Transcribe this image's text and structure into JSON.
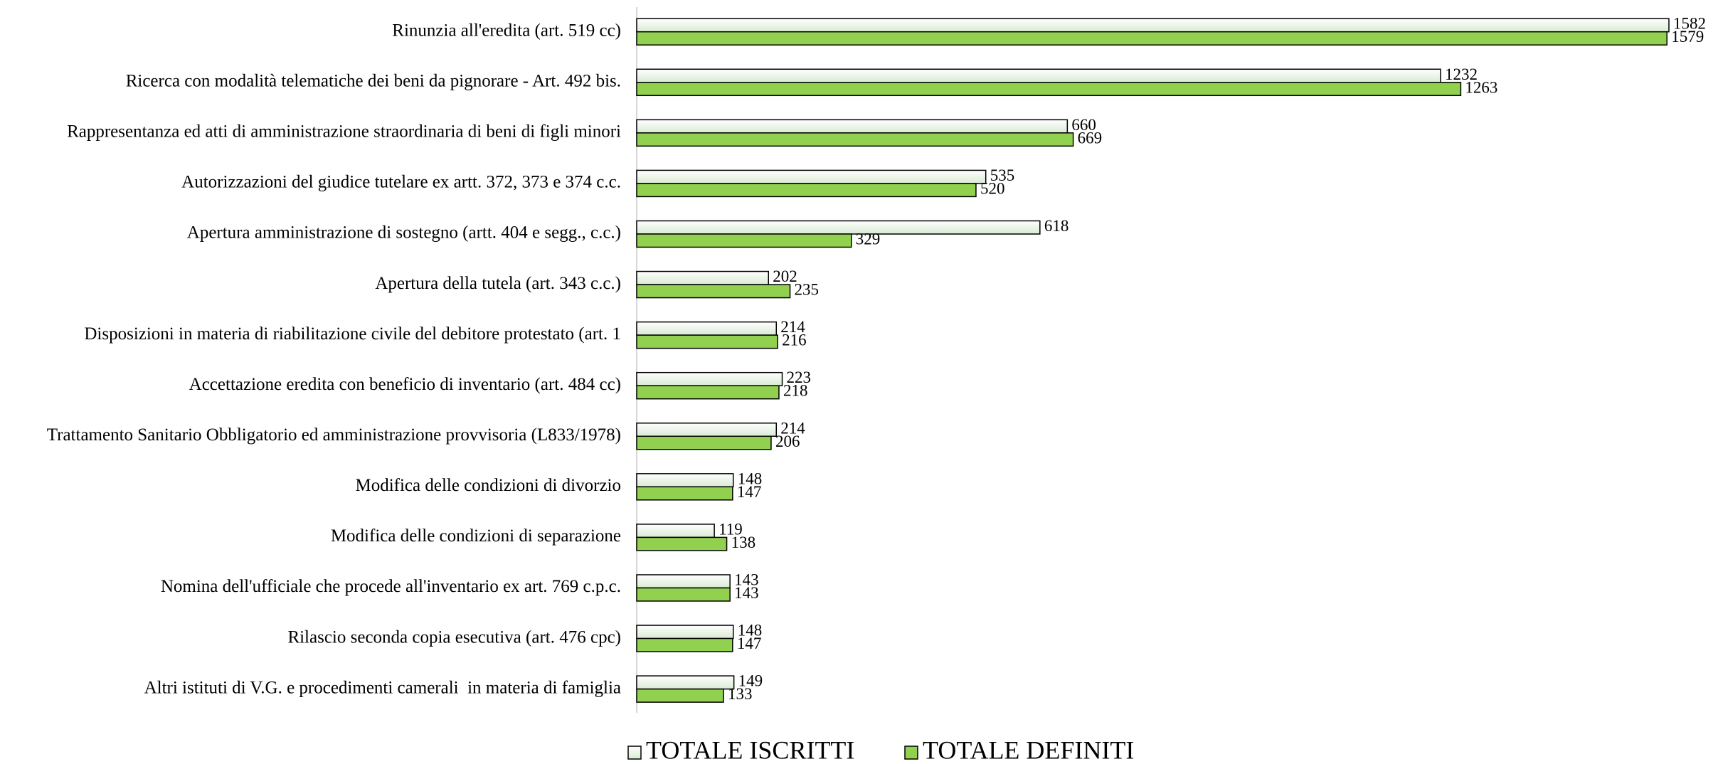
{
  "chart_data": {
    "type": "bar",
    "orientation": "horizontal",
    "categories": [
      "Rinunzia all'eredita (art. 519 cc)",
      "Ricerca con modalità telematiche dei beni da pignorare - Art. 492 bis.",
      "Rappresentanza ed atti di amministrazione straordinaria di beni di figli minori",
      "Autorizzazioni del giudice tutelare ex artt. 372, 373 e 374 c.c.",
      "Apertura amministrazione di sostegno (artt. 404 e segg., c.c.)",
      "Apertura della tutela (art. 343 c.c.)",
      "Disposizioni in materia di riabilitazione civile del debitore protestato (art. 1",
      "Accettazione eredita con beneficio di inventario (art. 484 cc)",
      "Trattamento Sanitario Obbligatorio ed amministrazione provvisoria (L833/1978)",
      "Modifica delle condizioni di divorzio",
      "Modifica delle condizioni di separazione",
      "Nomina dell'ufficiale che procede all'inventario ex art. 769 c.p.c.",
      "Rilascio seconda copia esecutiva (art. 476 cpc)",
      "Altri istituti di V.G. e procedimenti camerali  in materia di famiglia"
    ],
    "series": [
      {
        "name": "TOTALE ISCRITTI",
        "color": "#d9ead3",
        "values": [
          1582,
          1232,
          660,
          535,
          618,
          202,
          214,
          223,
          214,
          148,
          119,
          143,
          148,
          149
        ]
      },
      {
        "name": "TOTALE DEFINITI",
        "color": "#92d050",
        "values": [
          1579,
          1263,
          669,
          520,
          329,
          235,
          216,
          218,
          206,
          147,
          138,
          143,
          147,
          133
        ]
      }
    ]
  }
}
